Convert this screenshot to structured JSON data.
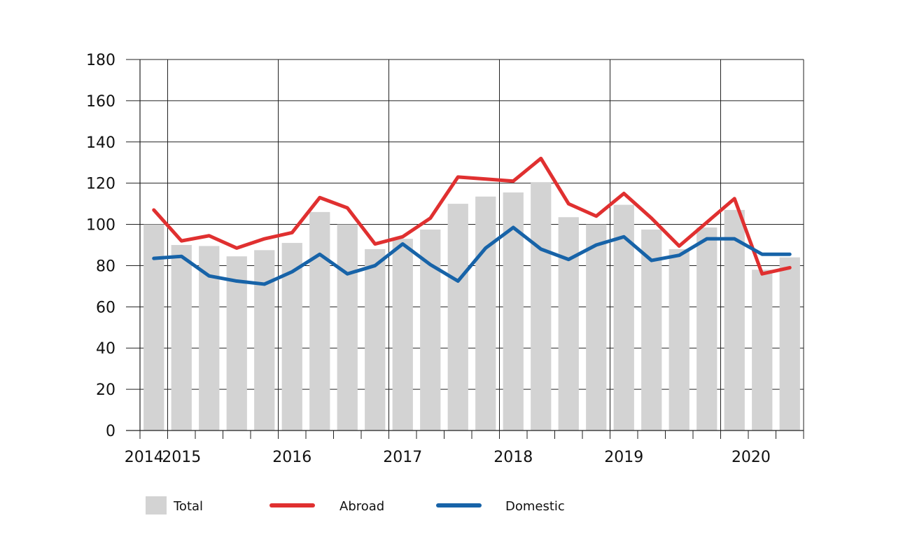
{
  "chart_data": {
    "type": "bar",
    "title": "",
    "xlabel": "",
    "ylabel": "",
    "ylim": [
      0,
      180
    ],
    "yticks": [
      0,
      20,
      40,
      60,
      80,
      100,
      120,
      140,
      160,
      180
    ],
    "year_labels": [
      "2014",
      "2015",
      "2016",
      "2017",
      "2018",
      "2019",
      "2020"
    ],
    "grid": true,
    "legend_position": "bottom",
    "series": [
      {
        "name": "Total",
        "kind": "bar",
        "color": "#d3d3d3",
        "values": [
          100,
          90,
          89.5,
          84.5,
          87.5,
          91,
          106,
          100,
          88,
          93,
          97.5,
          110,
          113.5,
          115.5,
          120.5,
          103.5,
          100,
          109.5,
          97.5,
          88,
          98.5,
          107,
          78,
          84
        ]
      },
      {
        "name": "Abroad",
        "kind": "line",
        "color": "#e03030",
        "values": [
          107,
          92,
          94.5,
          88.5,
          93,
          96,
          113,
          108,
          90.5,
          94,
          103,
          123,
          122,
          121,
          132,
          110,
          104,
          115,
          103,
          89.5,
          101,
          112.5,
          76,
          79
        ]
      },
      {
        "name": "Domestic",
        "kind": "line",
        "color": "#1763a8",
        "values": [
          83.5,
          84.5,
          75,
          72.5,
          71,
          77,
          85.5,
          76,
          80,
          90.5,
          80.5,
          72.5,
          88.5,
          98.5,
          88,
          83,
          90,
          94,
          82.5,
          85,
          93,
          93,
          85.5,
          85.5
        ]
      }
    ]
  }
}
